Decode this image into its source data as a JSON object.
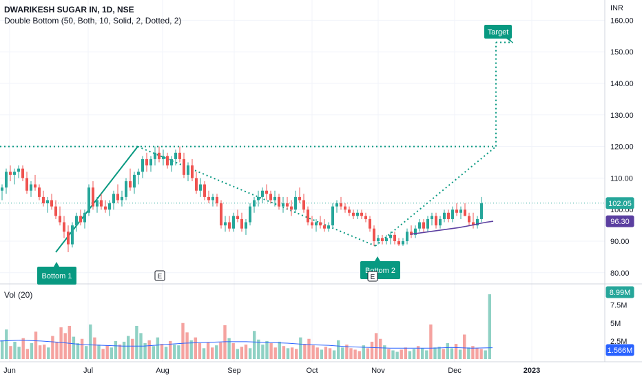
{
  "header": {
    "title": "DWARIKESH SUGAR IN, 1D, NSE",
    "indicator": "Double Bottom (50, Both, 10, Solid, 2, Dotted, 2)",
    "currency": "INR"
  },
  "volume_panel": {
    "title": "Vol (20)"
  },
  "labels": {
    "bottom1": "Bottom 1",
    "bottom2": "Bottom 2",
    "target": "Target",
    "earnings": "E"
  },
  "badges": {
    "last_price": "102.05",
    "sma": "96.30",
    "last_volume": "8.99M",
    "vol_ma": "1.566M"
  },
  "colors": {
    "up": "#26a69a",
    "down": "#ef5350",
    "vol_up": "#8fd1c4",
    "vol_down": "#f5a3a0",
    "pattern_line": "#089981",
    "sma_line": "#5b3fa0",
    "vol_ma_line": "#2962ff",
    "label_bg": "#089981"
  },
  "chart_data": {
    "type": "candlestick",
    "price_axis": {
      "ticks": [
        160,
        150,
        140,
        130,
        120,
        110,
        100,
        90,
        80
      ],
      "tick_labels": [
        "160.00",
        "150.00",
        "140.00",
        "130.00",
        "120.00",
        "110.00",
        "100.00",
        "90.00",
        "80.00"
      ]
    },
    "volume_axis": {
      "ticks": [
        7.5,
        5,
        2.5
      ],
      "tick_labels": [
        "7.5M",
        "5M",
        "2.5M"
      ]
    },
    "time_axis": {
      "tick_labels": [
        "Jun",
        "Jul",
        "Aug",
        "Sep",
        "Oct",
        "Nov",
        "Dec",
        "2023"
      ]
    },
    "pattern": {
      "bottom1": 86.5,
      "peak": 120,
      "bottom2": 88.5,
      "neckline": 120,
      "target": 153
    },
    "candles": [
      [
        106,
        108,
        103,
        107
      ],
      [
        107,
        113,
        105,
        112
      ],
      [
        112,
        114,
        109,
        111
      ],
      [
        111,
        113,
        108,
        112
      ],
      [
        112,
        114,
        110,
        113
      ],
      [
        113,
        114,
        109,
        110
      ],
      [
        110,
        112,
        105,
        106
      ],
      [
        106,
        109,
        104,
        108
      ],
      [
        108,
        111,
        106,
        107
      ],
      [
        107,
        108,
        103,
        104
      ],
      [
        104,
        106,
        101,
        102
      ],
      [
        102,
        104,
        99,
        103
      ],
      [
        103,
        105,
        100,
        101
      ],
      [
        101,
        103,
        97,
        98
      ],
      [
        98,
        101,
        95,
        96
      ],
      [
        96,
        98,
        91,
        93
      ],
      [
        93,
        95,
        86.5,
        89
      ],
      [
        89,
        96,
        88,
        95
      ],
      [
        95,
        99,
        93,
        98
      ],
      [
        98,
        100,
        95,
        96
      ],
      [
        96,
        100,
        94,
        99
      ],
      [
        99,
        108,
        98,
        107
      ],
      [
        107,
        109,
        100,
        101
      ],
      [
        101,
        104,
        99,
        103
      ],
      [
        103,
        105,
        100,
        101
      ],
      [
        101,
        103,
        99,
        100
      ],
      [
        100,
        103,
        98,
        102
      ],
      [
        102,
        106,
        100,
        105
      ],
      [
        105,
        108,
        102,
        103
      ],
      [
        103,
        106,
        101,
        104
      ],
      [
        104,
        110,
        103,
        109
      ],
      [
        109,
        113,
        106,
        107
      ],
      [
        107,
        112,
        105,
        111
      ],
      [
        111,
        113,
        108,
        112
      ],
      [
        112,
        117,
        110,
        116
      ],
      [
        116,
        118,
        112,
        114
      ],
      [
        114,
        117,
        112,
        116
      ],
      [
        116,
        120,
        114,
        118
      ],
      [
        118,
        120,
        115,
        116
      ],
      [
        116,
        119,
        114,
        117
      ],
      [
        117,
        118,
        113,
        114
      ],
      [
        114,
        117,
        112,
        116
      ],
      [
        116,
        119,
        114,
        118
      ],
      [
        118,
        120,
        115,
        116
      ],
      [
        116,
        118,
        110,
        111
      ],
      [
        111,
        115,
        109,
        114
      ],
      [
        114,
        116,
        109,
        110
      ],
      [
        110,
        112,
        105,
        106
      ],
      [
        106,
        110,
        104,
        108
      ],
      [
        108,
        109,
        103,
        104
      ],
      [
        104,
        106,
        102,
        103
      ],
      [
        103,
        105,
        101,
        104
      ],
      [
        104,
        105,
        101,
        102
      ],
      [
        102,
        103,
        94,
        95
      ],
      [
        95,
        98,
        93,
        96
      ],
      [
        96,
        98,
        93,
        94
      ],
      [
        94,
        99,
        93,
        98
      ],
      [
        98,
        100,
        96,
        97
      ],
      [
        97,
        99,
        93,
        94
      ],
      [
        94,
        97,
        92,
        96
      ],
      [
        96,
        102,
        95,
        101
      ],
      [
        101,
        104,
        99,
        103
      ],
      [
        103,
        106,
        101,
        104
      ],
      [
        104,
        107,
        102,
        106
      ],
      [
        106,
        108,
        103,
        105
      ],
      [
        105,
        106,
        102,
        103
      ],
      [
        103,
        106,
        101,
        104
      ],
      [
        104,
        105,
        100,
        101
      ],
      [
        101,
        104,
        99,
        102
      ],
      [
        102,
        104,
        100,
        101
      ],
      [
        101,
        103,
        98,
        100
      ],
      [
        100,
        106,
        99,
        104
      ],
      [
        104,
        107,
        102,
        103
      ],
      [
        103,
        105,
        99,
        100
      ],
      [
        100,
        101,
        95,
        96
      ],
      [
        96,
        98,
        94,
        95
      ],
      [
        95,
        97,
        93,
        96
      ],
      [
        96,
        98,
        94,
        95
      ],
      [
        95,
        97,
        93,
        94
      ],
      [
        94,
        96,
        93,
        95
      ],
      [
        95,
        102,
        94,
        101
      ],
      [
        101,
        103,
        99,
        102
      ],
      [
        102,
        104,
        100,
        101
      ],
      [
        101,
        102,
        99,
        100
      ],
      [
        100,
        101,
        98,
        99
      ],
      [
        99,
        100,
        97,
        98
      ],
      [
        98,
        100,
        97,
        99
      ],
      [
        99,
        100,
        97,
        98
      ],
      [
        98,
        99,
        96,
        97
      ],
      [
        97,
        98,
        93,
        94
      ],
      [
        94,
        95,
        88.5,
        90
      ],
      [
        90,
        92,
        89,
        91
      ],
      [
        91,
        92,
        89,
        90
      ],
      [
        90,
        92,
        89,
        91
      ],
      [
        91,
        93,
        89,
        92
      ],
      [
        92,
        93,
        89,
        90
      ],
      [
        90,
        91,
        88.5,
        89
      ],
      [
        89,
        91,
        88.5,
        90
      ],
      [
        90,
        94,
        89,
        93
      ],
      [
        93,
        95,
        91,
        92
      ],
      [
        92,
        95,
        91,
        94
      ],
      [
        94,
        97,
        93,
        96
      ],
      [
        96,
        97,
        93,
        94
      ],
      [
        94,
        98,
        93,
        97
      ],
      [
        97,
        99,
        95,
        98
      ],
      [
        98,
        99,
        94,
        95
      ],
      [
        95,
        98,
        94,
        97
      ],
      [
        97,
        100,
        96,
        99
      ],
      [
        99,
        100,
        96,
        97
      ],
      [
        97,
        101,
        96,
        100
      ],
      [
        100,
        102,
        98,
        99
      ],
      [
        99,
        101,
        97,
        100
      ],
      [
        100,
        102,
        98,
        98
      ],
      [
        98,
        99,
        95,
        96
      ],
      [
        96,
        99,
        94,
        95
      ],
      [
        95,
        98,
        94,
        97
      ],
      [
        97,
        104,
        96,
        102
      ]
    ],
    "volume": [
      2.6,
      4.1,
      1.8,
      2.4,
      1.7,
      2.9,
      1.4,
      2.2,
      3.8,
      1.9,
      2.0,
      1.6,
      3.2,
      2.4,
      4.4,
      3.6,
      4.6,
      3.1,
      2.2,
      2.8,
      1.8,
      4.8,
      3.0,
      2.0,
      1.4,
      1.9,
      1.6,
      2.5,
      2.0,
      2.4,
      3.2,
      2.8,
      4.6,
      3.6,
      2.2,
      2.6,
      1.8,
      3.0,
      2.1,
      1.7,
      2.5,
      2.0,
      1.9,
      5.0,
      3.7,
      2.6,
      3.0,
      2.2,
      1.5,
      2.3,
      1.6,
      1.9,
      2.3,
      4.7,
      2.9,
      2.2,
      1.4,
      1.7,
      2.0,
      1.5,
      3.9,
      2.7,
      2.0,
      2.5,
      2.2,
      1.6,
      2.4,
      1.8,
      1.5,
      1.6,
      1.4,
      3.0,
      2.1,
      2.8,
      1.9,
      1.6,
      1.3,
      1.7,
      1.5,
      1.2,
      2.6,
      1.6,
      2.0,
      1.5,
      1.3,
      1.1,
      1.9,
      1.5,
      2.4,
      3.6,
      2.8,
      1.9,
      1.4,
      1.2,
      1.0,
      1.3,
      1.6,
      1.1,
      1.4,
      1.8,
      1.5,
      1.2,
      4.8,
      1.6,
      1.7,
      1.4,
      2.2,
      1.5,
      2.1,
      1.3,
      3.4,
      1.6,
      1.8,
      1.5,
      1.4,
      1.2,
      8.99
    ],
    "sma": [
      92.2,
      92.5,
      92.8,
      93.1,
      93.4,
      93.7,
      94.0,
      94.3,
      94.7,
      95.1,
      95.6,
      96.0,
      96.3
    ],
    "vol_ma": [
      2.5,
      2.6,
      2.5,
      2.3,
      2.0,
      1.9,
      1.8,
      1.8,
      2.0,
      2.2,
      2.3,
      2.4,
      2.4,
      2.3,
      2.2,
      2.0,
      1.9,
      1.7,
      1.6,
      1.5,
      1.5,
      1.5,
      1.6,
      1.5,
      1.566
    ]
  }
}
